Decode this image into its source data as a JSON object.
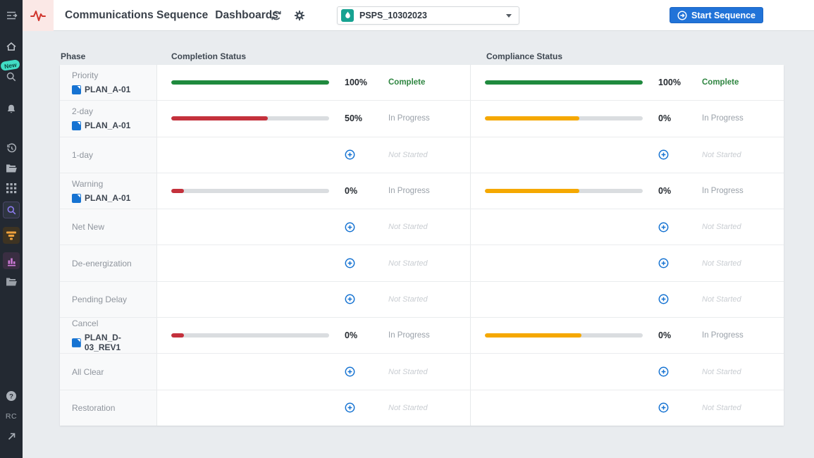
{
  "header": {
    "title": "Communications Sequence",
    "subtitle": "Dashboards",
    "dropdown_value": "PSPS_10302023",
    "start_button": "Start Sequence",
    "icons": [
      "refresh-icon",
      "gear-icon",
      "chevron-down-icon",
      "start-icon",
      "pulse-logo-icon"
    ]
  },
  "sidebar": {
    "new_badge": "New",
    "user_initials": "RC",
    "icons": [
      "sidebar-toggle-icon",
      "home-icon",
      "search-icon",
      "bell-icon",
      "history-icon",
      "folder-open-icon",
      "apps-grid-icon",
      "search-active-icon",
      "filter-funnel-icon",
      "bar-chart-icon",
      "folder-search-icon",
      "help-icon",
      "external-link-icon"
    ]
  },
  "columns": {
    "phase": "Phase",
    "completion": "Completion Status",
    "compliance": "Compliance Status"
  },
  "colors": {
    "green": "#1f8a3e",
    "red": "#c4313c",
    "amber": "#f5a800",
    "blue": "#1673d2",
    "button_blue": "#2173d8",
    "teal": "#16a291",
    "badge_teal": "#41dcc4"
  },
  "table": {
    "rows": [
      {
        "phase": "Priority",
        "plan": "PLAN_A-01",
        "completion": {
          "kind": "bar",
          "color": "green",
          "fill": 100,
          "pct": "100%",
          "status": "Complete",
          "status_kind": "complete"
        },
        "compliance": {
          "kind": "bar",
          "color": "green",
          "fill": 100,
          "pct": "100%",
          "status": "Complete",
          "status_kind": "complete"
        }
      },
      {
        "phase": "2-day",
        "plan": "PLAN_A-01",
        "completion": {
          "kind": "bar",
          "color": "red",
          "fill": 61,
          "pct": "50%",
          "status": "In Progress",
          "status_kind": "progress"
        },
        "compliance": {
          "kind": "bar",
          "color": "amber",
          "fill": 60,
          "pct": "0%",
          "status": "In Progress",
          "status_kind": "progress"
        }
      },
      {
        "phase": "1-day",
        "plan": null,
        "completion": {
          "kind": "empty",
          "status": "Not Started",
          "status_kind": "notstarted"
        },
        "compliance": {
          "kind": "empty",
          "status": "Not Started",
          "status_kind": "notstarted"
        }
      },
      {
        "phase": "Warning",
        "plan": "PLAN_A-01",
        "completion": {
          "kind": "bar",
          "color": "red",
          "fill": 8,
          "pct": "0%",
          "status": "In Progress",
          "status_kind": "progress"
        },
        "compliance": {
          "kind": "bar",
          "color": "amber",
          "fill": 60,
          "pct": "0%",
          "status": "In Progress",
          "status_kind": "progress"
        }
      },
      {
        "phase": "Net New",
        "plan": null,
        "completion": {
          "kind": "empty",
          "status": "Not Started",
          "status_kind": "notstarted"
        },
        "compliance": {
          "kind": "empty",
          "status": "Not Started",
          "status_kind": "notstarted"
        }
      },
      {
        "phase": "De-energization",
        "plan": null,
        "completion": {
          "kind": "empty",
          "status": "Not Started",
          "status_kind": "notstarted"
        },
        "compliance": {
          "kind": "empty",
          "status": "Not Started",
          "status_kind": "notstarted"
        }
      },
      {
        "phase": "Pending Delay",
        "plan": null,
        "completion": {
          "kind": "empty",
          "status": "Not Started",
          "status_kind": "notstarted"
        },
        "compliance": {
          "kind": "empty",
          "status": "Not Started",
          "status_kind": "notstarted"
        }
      },
      {
        "phase": "Cancel",
        "plan": "PLAN_D-03_REV1",
        "completion": {
          "kind": "bar",
          "color": "red",
          "fill": 8,
          "pct": "0%",
          "status": "In Progress",
          "status_kind": "progress"
        },
        "compliance": {
          "kind": "bar",
          "color": "amber",
          "fill": 61,
          "pct": "0%",
          "status": "In Progress",
          "status_kind": "progress"
        }
      },
      {
        "phase": "All Clear",
        "plan": null,
        "completion": {
          "kind": "empty",
          "status": "Not Started",
          "status_kind": "notstarted"
        },
        "compliance": {
          "kind": "empty",
          "status": "Not Started",
          "status_kind": "notstarted"
        }
      },
      {
        "phase": "Restoration",
        "plan": null,
        "completion": {
          "kind": "empty",
          "status": "Not Started",
          "status_kind": "notstarted"
        },
        "compliance": {
          "kind": "empty",
          "status": "Not Started",
          "status_kind": "notstarted"
        }
      }
    ]
  }
}
